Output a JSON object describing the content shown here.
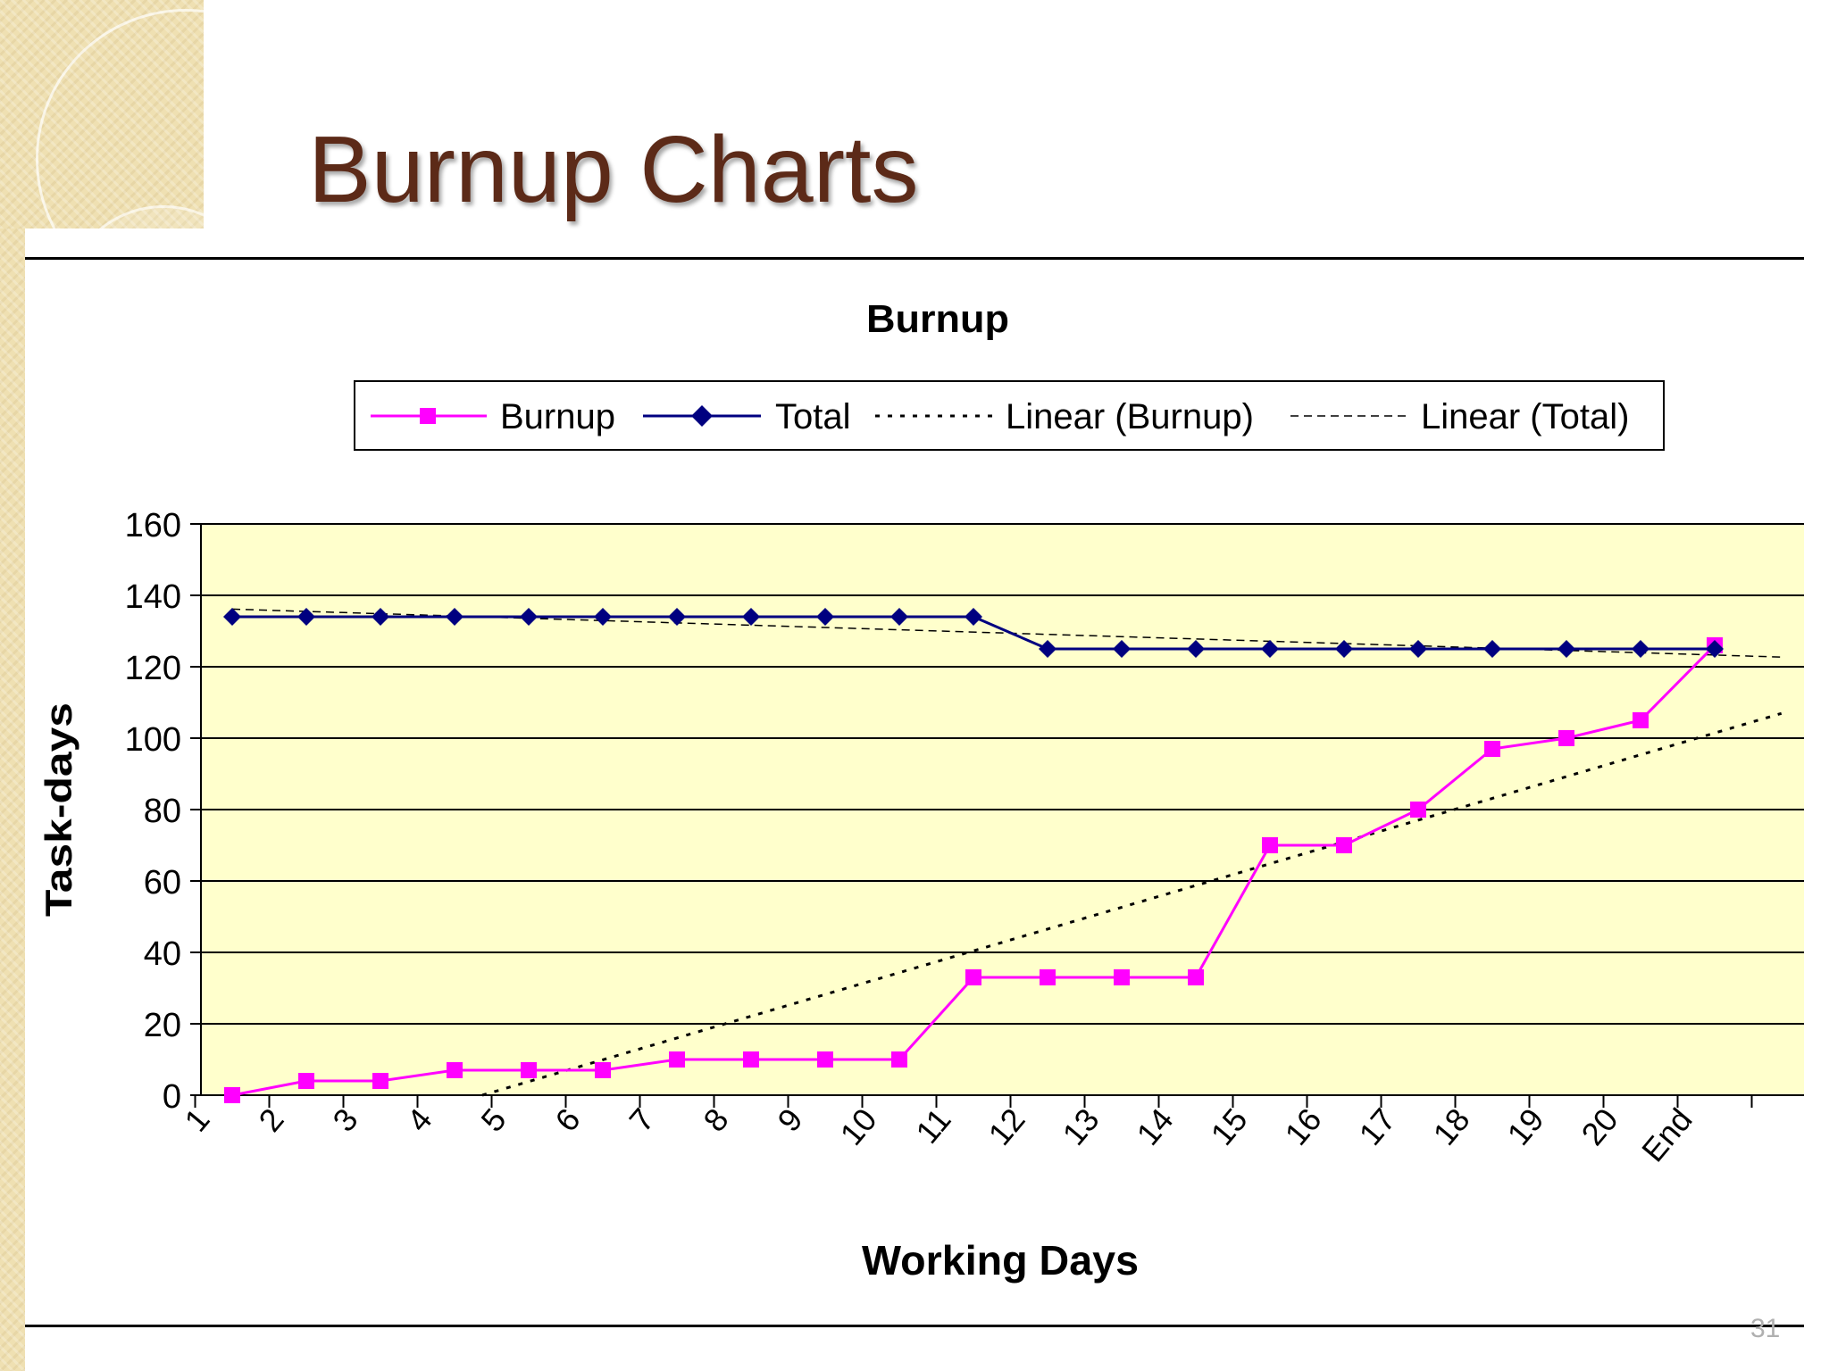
{
  "slide": {
    "title": "Burnup Charts",
    "page_number": "31"
  },
  "colors": {
    "burnup": "#ff00ff",
    "total": "#000080",
    "plot_background": "#ffffcc",
    "title": "#5c2a18"
  },
  "chart_data": {
    "type": "line",
    "title": "Burnup",
    "xlabel": "Working Days",
    "ylabel": "Task-days",
    "categories": [
      "1",
      "2",
      "3",
      "4",
      "5",
      "6",
      "7",
      "8",
      "9",
      "10",
      "11",
      "12",
      "13",
      "14",
      "15",
      "16",
      "17",
      "18",
      "19",
      "20",
      "End"
    ],
    "ylim": [
      0,
      160
    ],
    "yticks": [
      0,
      20,
      40,
      60,
      80,
      100,
      120,
      140,
      160
    ],
    "grid": true,
    "legend_position": "top",
    "series": [
      {
        "name": "Burnup",
        "marker": "square",
        "values": [
          0,
          4,
          4,
          7,
          7,
          7,
          10,
          10,
          10,
          10,
          33,
          33,
          33,
          33,
          70,
          70,
          80,
          97,
          100,
          105,
          126
        ]
      },
      {
        "name": "Total",
        "marker": "diamond",
        "values": [
          134,
          134,
          134,
          134,
          134,
          134,
          134,
          134,
          134,
          134,
          134,
          125,
          125,
          125,
          125,
          125,
          125,
          125,
          125,
          125,
          125
        ]
      },
      {
        "name": "Linear (Burnup)",
        "style": "dotted",
        "trend_of": "Burnup"
      },
      {
        "name": "Linear (Total)",
        "style": "dashed",
        "trend_of": "Total"
      }
    ]
  }
}
